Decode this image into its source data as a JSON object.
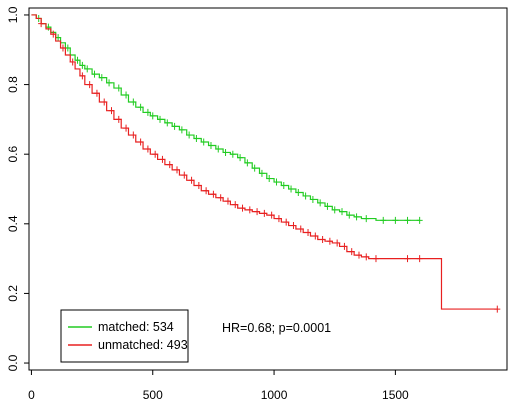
{
  "chart_data": {
    "type": "line",
    "subtype": "kaplan-meier",
    "title": "",
    "xlabel": "",
    "ylabel": "",
    "xlim": [
      -10,
      1960
    ],
    "ylim": [
      -0.02,
      1.02
    ],
    "x_ticks": [
      0,
      500,
      1000,
      1500
    ],
    "y_ticks": [
      0.0,
      0.2,
      0.4,
      0.6,
      0.8,
      1.0
    ],
    "x_tick_labels": [
      "0",
      "500",
      "1000",
      "1500"
    ],
    "y_tick_labels": [
      "0.0",
      "0.2",
      "0.4",
      "0.6",
      "0.8",
      "1.0"
    ],
    "grid": false,
    "legend_position": "bottom-left",
    "annotation": "HR=0.68; p=0.0001",
    "series": [
      {
        "name": "matched: 534",
        "color": "#22cc22",
        "x": [
          0,
          20,
          40,
          60,
          80,
          100,
          120,
          140,
          160,
          180,
          200,
          220,
          250,
          280,
          310,
          340,
          370,
          400,
          430,
          460,
          490,
          520,
          550,
          580,
          610,
          640,
          670,
          700,
          730,
          760,
          790,
          820,
          850,
          880,
          910,
          940,
          970,
          1000,
          1030,
          1060,
          1090,
          1120,
          1150,
          1180,
          1210,
          1240,
          1270,
          1300,
          1330,
          1360,
          1390,
          1420,
          1600
        ],
        "y": [
          1.0,
          0.99,
          0.975,
          0.965,
          0.95,
          0.935,
          0.92,
          0.905,
          0.885,
          0.87,
          0.855,
          0.845,
          0.83,
          0.82,
          0.805,
          0.79,
          0.77,
          0.75,
          0.735,
          0.72,
          0.71,
          0.7,
          0.69,
          0.68,
          0.67,
          0.655,
          0.645,
          0.635,
          0.625,
          0.615,
          0.605,
          0.6,
          0.59,
          0.575,
          0.56,
          0.545,
          0.53,
          0.52,
          0.51,
          0.5,
          0.49,
          0.48,
          0.47,
          0.46,
          0.45,
          0.44,
          0.435,
          0.425,
          0.42,
          0.415,
          0.415,
          0.41,
          0.41
        ],
        "censor_x": [
          30,
          70,
          110,
          150,
          190,
          210,
          230,
          260,
          290,
          320,
          360,
          390,
          420,
          450,
          480,
          500,
          530,
          560,
          590,
          620,
          650,
          680,
          710,
          740,
          770,
          800,
          830,
          860,
          890,
          920,
          950,
          980,
          1010,
          1040,
          1070,
          1100,
          1130,
          1160,
          1190,
          1220,
          1250,
          1280,
          1310,
          1340,
          1380,
          1450,
          1500,
          1550,
          1600
        ]
      },
      {
        "name": "unmatched: 493",
        "color": "#e82020",
        "x": [
          0,
          20,
          40,
          60,
          80,
          100,
          120,
          140,
          160,
          180,
          200,
          220,
          250,
          280,
          310,
          340,
          370,
          400,
          430,
          460,
          490,
          520,
          550,
          580,
          610,
          640,
          670,
          700,
          730,
          760,
          790,
          820,
          850,
          880,
          910,
          940,
          970,
          1000,
          1030,
          1060,
          1090,
          1120,
          1150,
          1180,
          1210,
          1240,
          1270,
          1300,
          1330,
          1360,
          1390,
          1680,
          1690,
          1920
        ],
        "y": [
          1.0,
          0.99,
          0.975,
          0.96,
          0.945,
          0.925,
          0.905,
          0.885,
          0.865,
          0.845,
          0.825,
          0.8,
          0.775,
          0.75,
          0.725,
          0.7,
          0.675,
          0.655,
          0.635,
          0.615,
          0.6,
          0.585,
          0.57,
          0.555,
          0.54,
          0.525,
          0.51,
          0.495,
          0.485,
          0.475,
          0.465,
          0.455,
          0.445,
          0.44,
          0.435,
          0.43,
          0.425,
          0.415,
          0.405,
          0.395,
          0.385,
          0.375,
          0.365,
          0.355,
          0.35,
          0.345,
          0.335,
          0.32,
          0.31,
          0.305,
          0.3,
          0.3,
          0.155,
          0.155
        ],
        "censor_x": [
          40,
          90,
          130,
          170,
          210,
          240,
          270,
          300,
          330,
          360,
          390,
          420,
          450,
          480,
          510,
          540,
          570,
          600,
          630,
          660,
          690,
          720,
          750,
          780,
          810,
          840,
          870,
          900,
          930,
          960,
          990,
          1020,
          1050,
          1080,
          1110,
          1140,
          1170,
          1200,
          1230,
          1260,
          1290,
          1320,
          1350,
          1380,
          1420,
          1550,
          1600,
          1920
        ]
      }
    ]
  }
}
